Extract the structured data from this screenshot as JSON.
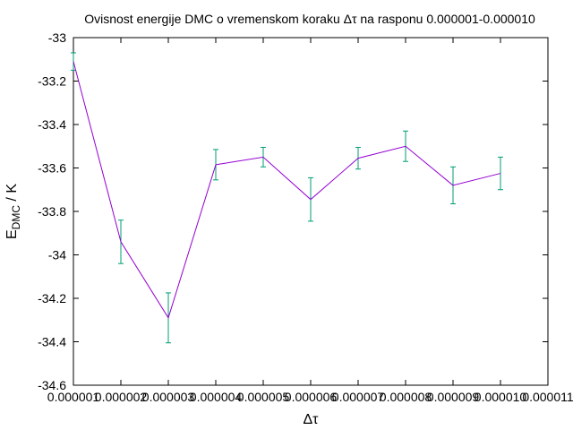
{
  "chart_data": {
    "type": "line",
    "title": "Ovisnost energije DMC o vremenskom koraku Δτ na rasponu 0.000001-0.000010",
    "xlabel": "Δτ",
    "ylabel_main": "E",
    "ylabel_sub": "DMC",
    "ylabel_tail": " / K",
    "xlim": [
      1e-06,
      1.1e-05
    ],
    "ylim": [
      -34.6,
      -33
    ],
    "x_ticks": [
      1e-06,
      2e-06,
      3e-06,
      4e-06,
      5e-06,
      6e-06,
      7e-06,
      8e-06,
      9e-06,
      1e-05,
      1.1e-05
    ],
    "x_tick_labels": [
      "0.000001",
      "0.000002",
      "0.000003",
      "0.000004",
      "0.000005",
      "0.000006",
      "0.000007",
      "0.000008",
      "0.000009",
      "0.000010",
      "0.000011"
    ],
    "y_ticks": [
      -33,
      -33.2,
      -33.4,
      -33.6,
      -33.8,
      -34,
      -34.2,
      -34.4,
      -34.6
    ],
    "y_tick_labels": [
      "-33",
      "-33.2",
      "-33.4",
      "-33.6",
      "-33.8",
      "-34",
      "-34.2",
      "-34.4",
      "-34.6"
    ],
    "grid": false,
    "line_color": "#9400d3",
    "errorbar_color": "#009e73",
    "series": [
      {
        "x": [
          1e-06,
          2e-06,
          3e-06,
          4e-06,
          5e-06,
          6e-06,
          7e-06,
          8e-06,
          9e-06,
          1e-05
        ],
        "y": [
          -33.11,
          -33.94,
          -34.29,
          -33.585,
          -33.55,
          -33.745,
          -33.555,
          -33.5,
          -33.68,
          -33.625
        ],
        "err": [
          0.04,
          0.1,
          0.115,
          0.07,
          0.045,
          0.1,
          0.05,
          0.07,
          0.085,
          0.075
        ]
      }
    ]
  }
}
